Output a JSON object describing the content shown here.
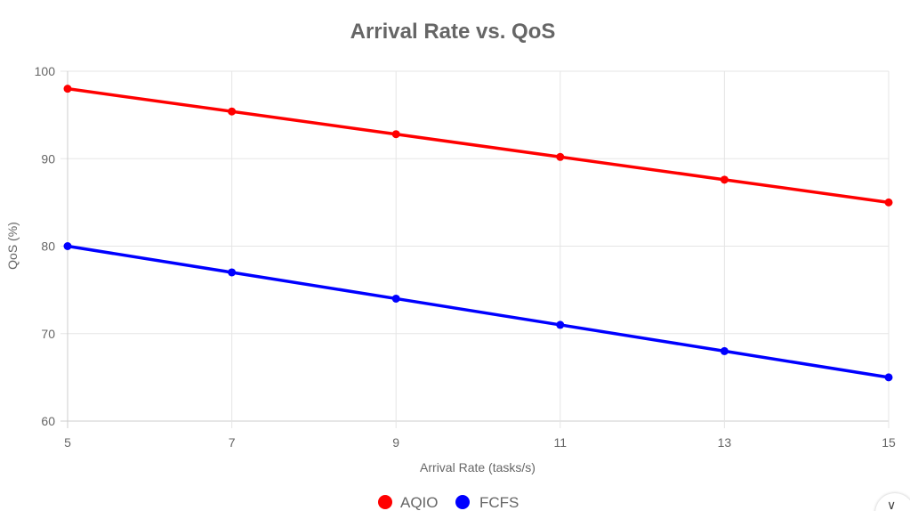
{
  "chart_data": {
    "type": "line",
    "title": "Arrival Rate vs. QoS",
    "xlabel": "Arrival Rate (tasks/s)",
    "ylabel": "QoS (%)",
    "x": [
      5,
      7,
      9,
      11,
      13,
      15
    ],
    "x_ticks": [
      "5",
      "7",
      "9",
      "11",
      "13",
      "15"
    ],
    "ylim": [
      60,
      100
    ],
    "y_ticks": [
      "100",
      "90",
      "80",
      "70",
      "60"
    ],
    "grid": true,
    "legend_position": "bottom",
    "series": [
      {
        "name": "AQIO",
        "color": "#ff0000",
        "values": [
          98,
          95.4,
          92.8,
          90.2,
          87.6,
          85
        ]
      },
      {
        "name": "FCFS",
        "color": "#0000ff",
        "values": [
          80,
          77,
          74,
          71,
          68,
          65
        ]
      }
    ]
  },
  "ui": {
    "scroll_button_icon": "chevron-down-icon"
  }
}
